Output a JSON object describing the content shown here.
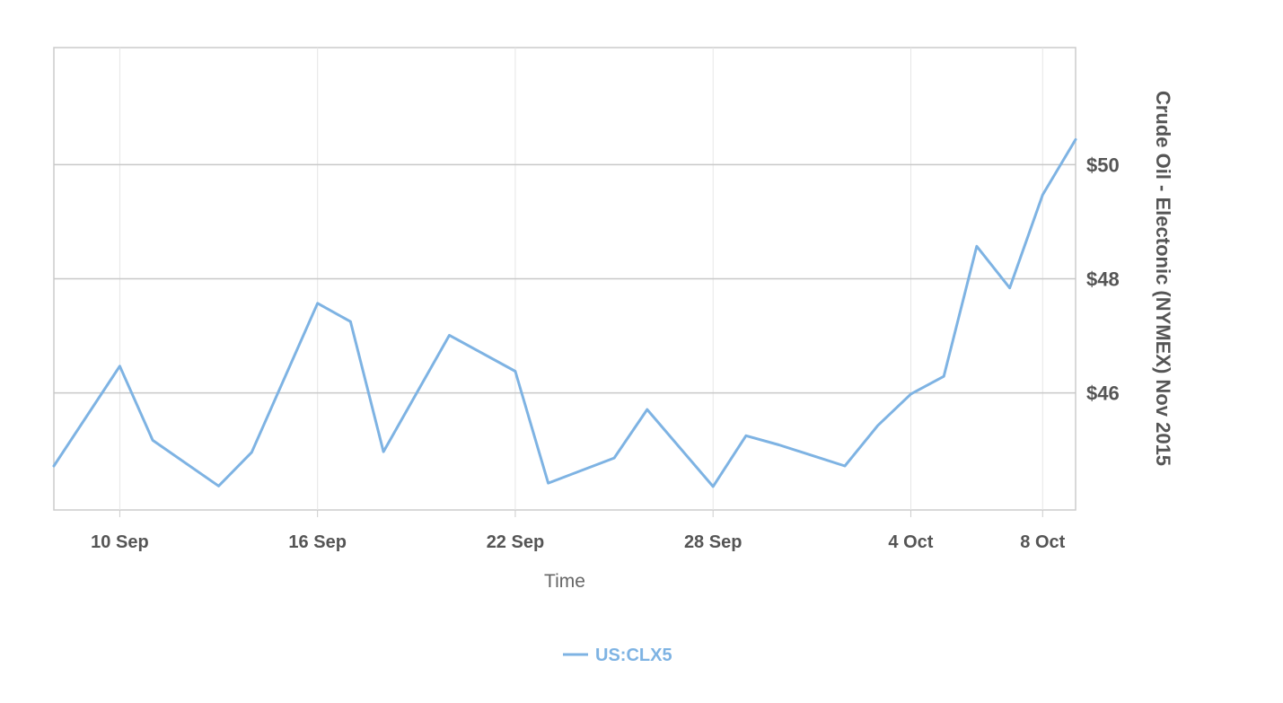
{
  "chart_data": {
    "type": "line",
    "title": "",
    "xlabel": "Time",
    "ylabel": "Crude Oil - Electonic (NYMEX) Nov 2015",
    "y_axis_side": "right",
    "ylim": [
      43.95,
      52.05
    ],
    "y_ticks": [
      46,
      48,
      50
    ],
    "y_tick_labels": [
      "$46",
      "$48",
      "$50"
    ],
    "x_ticks": [
      "2015-09-10",
      "2015-09-16",
      "2015-09-22",
      "2015-09-28",
      "2015-10-04",
      "2015-10-08"
    ],
    "x_tick_labels": [
      "10 Sep",
      "16 Sep",
      "22 Sep",
      "28 Sep",
      "4 Oct",
      "8 Oct"
    ],
    "xlim": [
      "2015-09-08",
      "2015-10-09"
    ],
    "grid": true,
    "legend": "bottom-center",
    "series": [
      {
        "name": "US:CLX5",
        "color": "#7eb3e3",
        "points": [
          {
            "x": "2015-09-08",
            "y": 44.72
          },
          {
            "x": "2015-09-10",
            "y": 46.47
          },
          {
            "x": "2015-09-11",
            "y": 45.17
          },
          {
            "x": "2015-09-13",
            "y": 44.37
          },
          {
            "x": "2015-09-14",
            "y": 44.96
          },
          {
            "x": "2015-09-16",
            "y": 47.57
          },
          {
            "x": "2015-09-17",
            "y": 47.25
          },
          {
            "x": "2015-09-18",
            "y": 44.97
          },
          {
            "x": "2015-09-20",
            "y": 47.01
          },
          {
            "x": "2015-09-22",
            "y": 46.38
          },
          {
            "x": "2015-09-23",
            "y": 44.42
          },
          {
            "x": "2015-09-25",
            "y": 44.86
          },
          {
            "x": "2015-09-26",
            "y": 45.71
          },
          {
            "x": "2015-09-28",
            "y": 44.36
          },
          {
            "x": "2015-09-29",
            "y": 45.25
          },
          {
            "x": "2015-09-30",
            "y": 45.09
          },
          {
            "x": "2015-10-02",
            "y": 44.72
          },
          {
            "x": "2015-10-03",
            "y": 45.43
          },
          {
            "x": "2015-10-04",
            "y": 45.98
          },
          {
            "x": "2015-10-05",
            "y": 46.29
          },
          {
            "x": "2015-10-06",
            "y": 48.57
          },
          {
            "x": "2015-10-07",
            "y": 47.84
          },
          {
            "x": "2015-10-08",
            "y": 49.47
          },
          {
            "x": "2015-10-09",
            "y": 50.44
          }
        ]
      }
    ]
  }
}
